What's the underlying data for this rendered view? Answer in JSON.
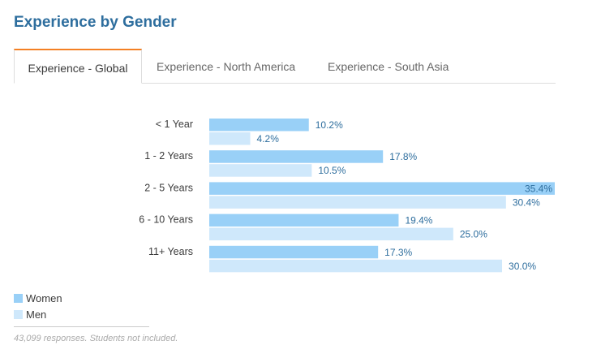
{
  "header": {
    "title": "Experience by Gender"
  },
  "tabs": [
    {
      "label": "Experience - Global",
      "active": true
    },
    {
      "label": "Experience - North America",
      "active": false
    },
    {
      "label": "Experience - South Asia",
      "active": false
    }
  ],
  "colors": {
    "women": "#99d0f7",
    "men": "#cfe8fb",
    "value_text": "#2e6e9e",
    "tab_accent": "#f48024"
  },
  "chart_data": {
    "type": "bar",
    "orientation": "horizontal",
    "categories": [
      "< 1 Year",
      "1 - 2 Years",
      "2 - 5 Years",
      "6 - 10 Years",
      "11+ Years"
    ],
    "series": [
      {
        "name": "Women",
        "values": [
          10.2,
          17.8,
          35.4,
          19.4,
          17.3
        ],
        "labels": [
          "10.2%",
          "17.8%",
          "35.4%",
          "19.4%",
          "17.3%"
        ]
      },
      {
        "name": "Men",
        "values": [
          4.2,
          10.5,
          30.4,
          25.0,
          30.0
        ],
        "labels": [
          "4.2%",
          "10.5%",
          "30.4%",
          "25.0%",
          "30.0%"
        ]
      }
    ],
    "unit": "%",
    "xlim": [
      0,
      35.4
    ],
    "legend": "bottom-left",
    "grid": false
  },
  "footer": {
    "note": "43,099 responses. Students not included."
  }
}
